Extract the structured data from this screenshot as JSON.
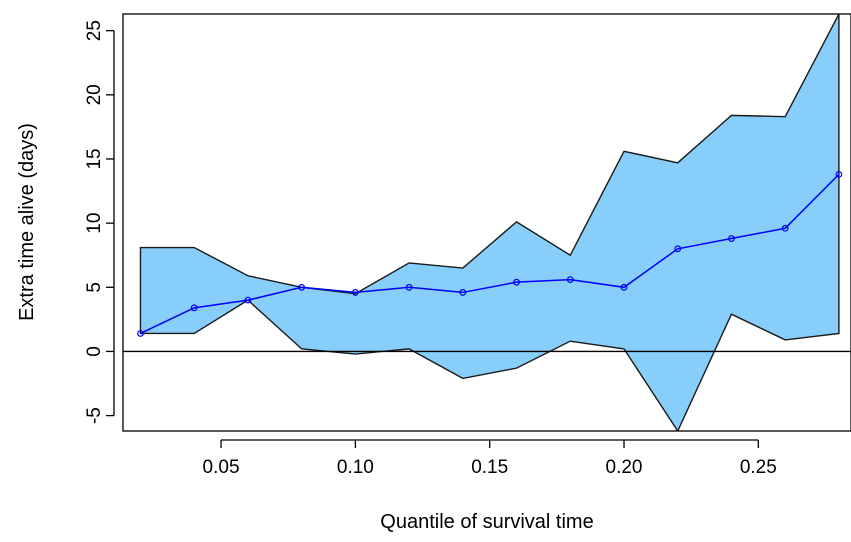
{
  "chart_data": {
    "type": "area",
    "title": "",
    "xlabel": "Quantile of survival time",
    "ylabel": "Extra time alive (days)",
    "xlim": [
      0.0135,
      0.2845
    ],
    "ylim": [
      -6.2,
      26.3
    ],
    "x_ticks": [
      0.05,
      0.1,
      0.15,
      0.2,
      0.25
    ],
    "x_tick_labels": [
      "0.05",
      "0.10",
      "0.15",
      "0.20",
      "0.25"
    ],
    "y_ticks": [
      -5,
      0,
      5,
      10,
      15,
      20,
      25
    ],
    "y_tick_labels": [
      "-5",
      "0",
      "5",
      "10",
      "15",
      "20",
      "25"
    ],
    "reference_line_y": 0,
    "x": [
      0.02,
      0.04,
      0.06,
      0.08,
      0.1,
      0.12,
      0.14,
      0.16,
      0.18,
      0.2,
      0.22,
      0.24,
      0.26,
      0.28
    ],
    "series": [
      {
        "values": [
          1.4,
          3.4,
          4.0,
          5.0,
          4.6,
          5.0,
          4.6,
          5.4,
          5.6,
          5.0,
          8.0,
          8.8,
          9.6,
          13.8
        ]
      },
      {
        "values": [
          8.1,
          8.1,
          5.9,
          5.0,
          4.5,
          6.9,
          6.5,
          10.1,
          7.5,
          15.6,
          14.7,
          18.4,
          18.3,
          26.3
        ]
      },
      {
        "values": [
          1.4,
          1.4,
          4.0,
          0.2,
          -0.2,
          0.2,
          -2.1,
          -1.3,
          0.8,
          0.2,
          -6.2,
          2.9,
          0.9,
          1.4
        ]
      }
    ],
    "band_color": "#87CEFA",
    "line_color": "#0000FF",
    "grid": false,
    "legend": "none"
  }
}
